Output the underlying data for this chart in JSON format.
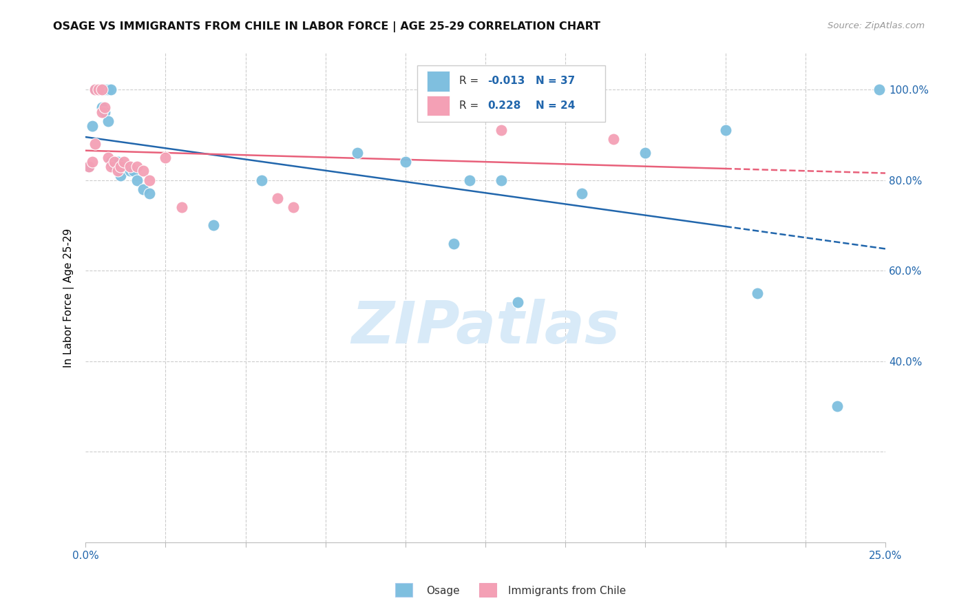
{
  "title": "OSAGE VS IMMIGRANTS FROM CHILE IN LABOR FORCE | AGE 25-29 CORRELATION CHART",
  "source": "Source: ZipAtlas.com",
  "ylabel": "In Labor Force | Age 25-29",
  "xlim": [
    0.0,
    0.25
  ],
  "ylim": [
    0.0,
    1.08
  ],
  "osage_color": "#7fbfdf",
  "chile_color": "#f4a0b5",
  "osage_trend_color": "#2166ac",
  "chile_trend_color": "#e8607a",
  "background_color": "#ffffff",
  "watermark_color": "#d8eaf8",
  "osage_x": [
    0.001,
    0.002,
    0.003,
    0.003,
    0.004,
    0.005,
    0.005,
    0.006,
    0.006,
    0.007,
    0.007,
    0.008,
    0.008,
    0.009,
    0.01,
    0.011,
    0.012,
    0.013,
    0.014,
    0.015,
    0.016,
    0.018,
    0.02,
    0.04,
    0.055,
    0.085,
    0.1,
    0.115,
    0.12,
    0.13,
    0.135,
    0.155,
    0.175,
    0.2,
    0.21,
    0.235,
    0.248
  ],
  "osage_y": [
    0.83,
    0.92,
    1.0,
    1.0,
    1.0,
    1.0,
    0.96,
    1.0,
    0.95,
    1.0,
    0.93,
    1.0,
    0.84,
    0.83,
    0.84,
    0.81,
    0.83,
    0.83,
    0.82,
    0.82,
    0.8,
    0.78,
    0.77,
    0.7,
    0.8,
    0.86,
    0.84,
    0.66,
    0.8,
    0.8,
    0.53,
    0.77,
    0.86,
    0.91,
    0.55,
    0.3,
    1.0
  ],
  "chile_x": [
    0.001,
    0.002,
    0.003,
    0.003,
    0.004,
    0.005,
    0.005,
    0.006,
    0.007,
    0.008,
    0.009,
    0.01,
    0.011,
    0.012,
    0.014,
    0.016,
    0.018,
    0.02,
    0.025,
    0.03,
    0.06,
    0.065,
    0.13,
    0.165
  ],
  "chile_y": [
    0.83,
    0.84,
    0.88,
    1.0,
    1.0,
    1.0,
    0.95,
    0.96,
    0.85,
    0.83,
    0.84,
    0.82,
    0.83,
    0.84,
    0.83,
    0.83,
    0.82,
    0.8,
    0.85,
    0.74,
    0.76,
    0.74,
    0.91,
    0.89
  ]
}
